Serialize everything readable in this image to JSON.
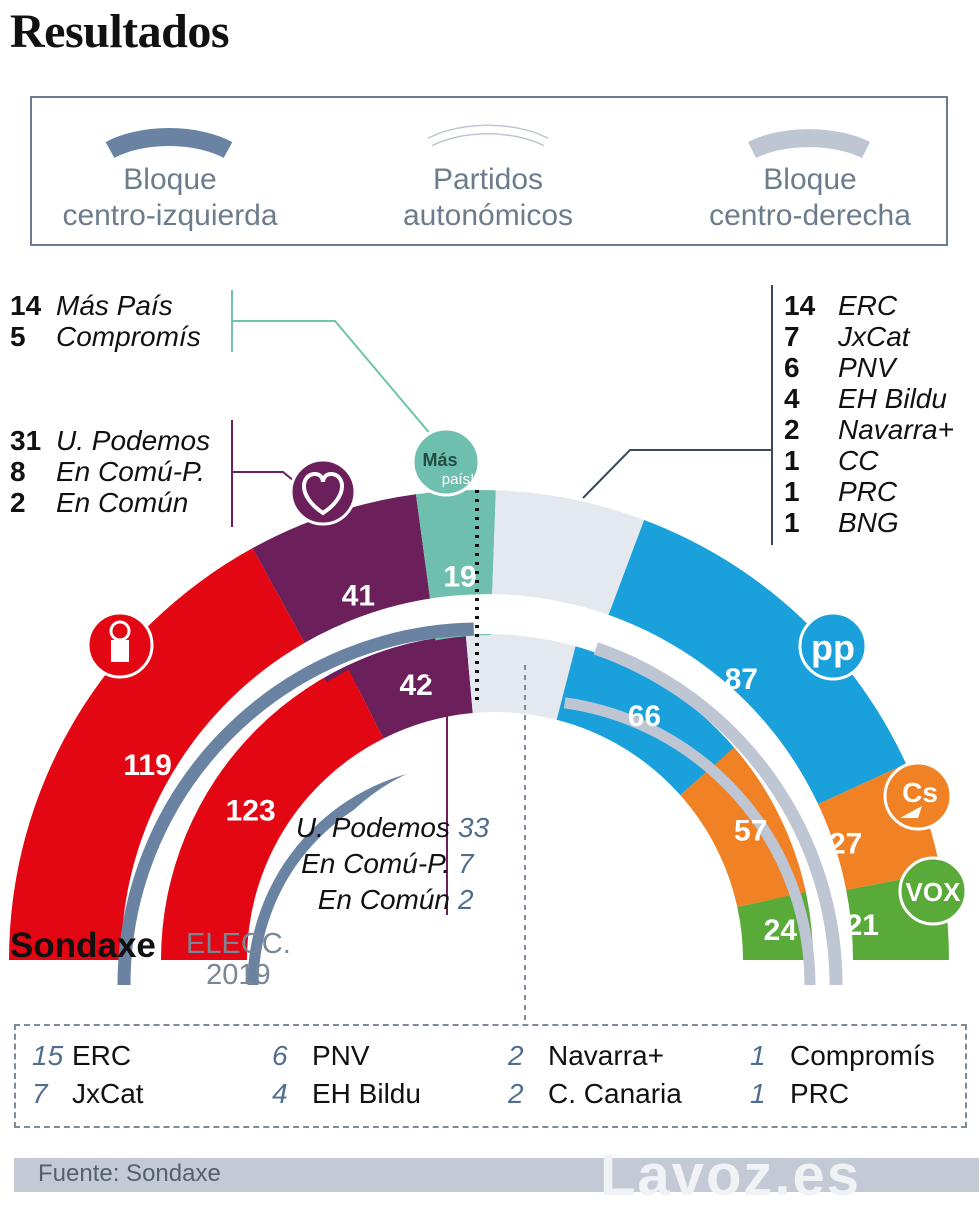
{
  "title": "Resultados",
  "legend": [
    {
      "label_1": "Bloque",
      "label_2": "centro-izquierda"
    },
    {
      "label_1": "Partidos",
      "label_2": "autonómicos"
    },
    {
      "label_1": "Bloque",
      "label_2": "centro-derecha"
    }
  ],
  "colors": {
    "psoe": "#e30613",
    "podemos": "#6b1f5b",
    "mas_pais": "#6fbfae",
    "autonomicos": "#e4e8ef",
    "pp": "#1aa1dc",
    "cs": "#f08125",
    "vox": "#5aaa3a",
    "bloque_izq": "#6a83a3",
    "bloque_der": "#bec6d3",
    "mas_pais_line": "#6fc3ac",
    "text_gray": "#6d7c8c"
  },
  "left_lists": {
    "mas_pais": [
      {
        "num": "14",
        "name": "Más País"
      },
      {
        "num": "5",
        "name": "Compromís"
      }
    ],
    "podemos": [
      {
        "num": "31",
        "name": "U. Podemos"
      },
      {
        "num": "8",
        "name": "En Comú-P."
      },
      {
        "num": "2",
        "name": "En Común"
      }
    ]
  },
  "right_list": [
    {
      "num": "14",
      "name": "ERC"
    },
    {
      "num": "7",
      "name": "JxCat"
    },
    {
      "num": "6",
      "name": "PNV"
    },
    {
      "num": "4",
      "name": "EH Bildu"
    },
    {
      "num": "2",
      "name": "Navarra+"
    },
    {
      "num": "1",
      "name": "CC"
    },
    {
      "num": "1",
      "name": "PRC"
    },
    {
      "num": "1",
      "name": "BNG"
    }
  ],
  "elecc_podemos_list": [
    {
      "name": "U. Podemos",
      "num": "33"
    },
    {
      "name": "En Comú-P.",
      "num": "7"
    },
    {
      "name": "En Común",
      "num": "2"
    }
  ],
  "labels": {
    "sondaxe": "Sondaxe",
    "elecc_1": "ELECC.",
    "elecc_2": "2019"
  },
  "logos": {
    "mas_pais_1": "Más",
    "mas_pais_2": "país!",
    "cs": "Cs",
    "vox": "VOX",
    "pp": "pp"
  },
  "bottom_list": [
    {
      "num": "15",
      "name": "ERC"
    },
    {
      "num": "6",
      "name": "PNV"
    },
    {
      "num": "2",
      "name": "Navarra+"
    },
    {
      "num": "1",
      "name": "Compromís"
    },
    {
      "num": "7",
      "name": "JxCat"
    },
    {
      "num": "4",
      "name": "EH Bildu"
    },
    {
      "num": "2",
      "name": "C. Canaria"
    },
    {
      "num": "1",
      "name": "PRC"
    }
  ],
  "footer": {
    "source": "Fuente: Sondaxe",
    "watermark": "Lavoz.es"
  },
  "chart_data": [
    {
      "type": "parliament-donut",
      "series_label": "Sondaxe",
      "total_seats": 350,
      "parties": [
        {
          "name": "PSOE",
          "seats": 119,
          "color": "#e30613"
        },
        {
          "name": "Unidas Podemos",
          "seats": 41,
          "color": "#6b1f5b"
        },
        {
          "name": "Más País",
          "seats": 19,
          "color": "#6fbfae"
        },
        {
          "name": "Partidos autonómicos",
          "seats": 36,
          "color": "#e4e8ef"
        },
        {
          "name": "PP",
          "seats": 87,
          "color": "#1aa1dc"
        },
        {
          "name": "Cs",
          "seats": 27,
          "color": "#f08125"
        },
        {
          "name": "Vox",
          "seats": 21,
          "color": "#5aaa3a"
        }
      ]
    },
    {
      "type": "parliament-donut",
      "series_label": "ELECC. 2019",
      "total_seats": 350,
      "parties": [
        {
          "name": "PSOE",
          "seats": 123,
          "color": "#e30613"
        },
        {
          "name": "Unidas Podemos",
          "seats": 42,
          "color": "#6b1f5b"
        },
        {
          "name": "Partidos autonómicos",
          "seats": 38,
          "color": "#e4e8ef"
        },
        {
          "name": "PP",
          "seats": 66,
          "color": "#1aa1dc"
        },
        {
          "name": "Cs",
          "seats": 57,
          "color": "#f08125"
        },
        {
          "name": "Vox",
          "seats": 24,
          "color": "#5aaa3a"
        }
      ]
    }
  ]
}
